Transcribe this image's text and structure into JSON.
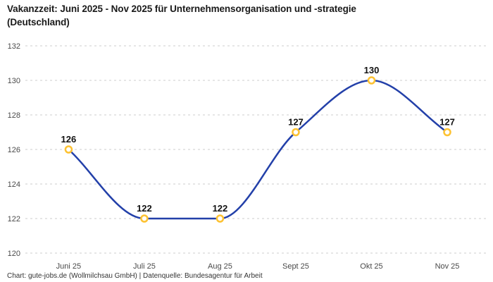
{
  "title_line1": "Vakanzzeit: Juni 2025 - Nov 2025 für Unternehmensorganisation und -strategie",
  "title_line2": "(Deutschland)",
  "footer": "Chart: gute-jobs.de (Wollmilchsau GmbH) | Datenquelle: Bundesagentur für Arbeit",
  "colors": {
    "background": "#ffffff",
    "title_text": "#1a1a1a",
    "axis_text": "#4a4a4a",
    "grid": "#cccccc",
    "line": "#2340a9",
    "marker_ring": "#fdc232",
    "marker_fill": "#ffffff",
    "point_label_text": "#111111",
    "footer_text": "#333333"
  },
  "chart_data": {
    "type": "line",
    "title": "Vakanzzeit: Juni 2025 - Nov 2025 für Unternehmensorganisation und -strategie (Deutschland)",
    "categories": [
      "Juni 25",
      "Juli 25",
      "Aug 25",
      "Sept 25",
      "Okt 25",
      "Nov 25"
    ],
    "values": [
      126,
      122,
      122,
      127,
      130,
      127
    ],
    "point_labels": [
      "126",
      "122",
      "122",
      "127",
      "130",
      "127"
    ],
    "xlabel": "",
    "ylabel": "",
    "ylim": [
      120,
      132
    ],
    "yticks": [
      120,
      122,
      124,
      126,
      128,
      130,
      132
    ],
    "grid": "horizontal-dashed",
    "legend": "none",
    "curve": "smooth-monotone",
    "markers": "open-circle"
  }
}
